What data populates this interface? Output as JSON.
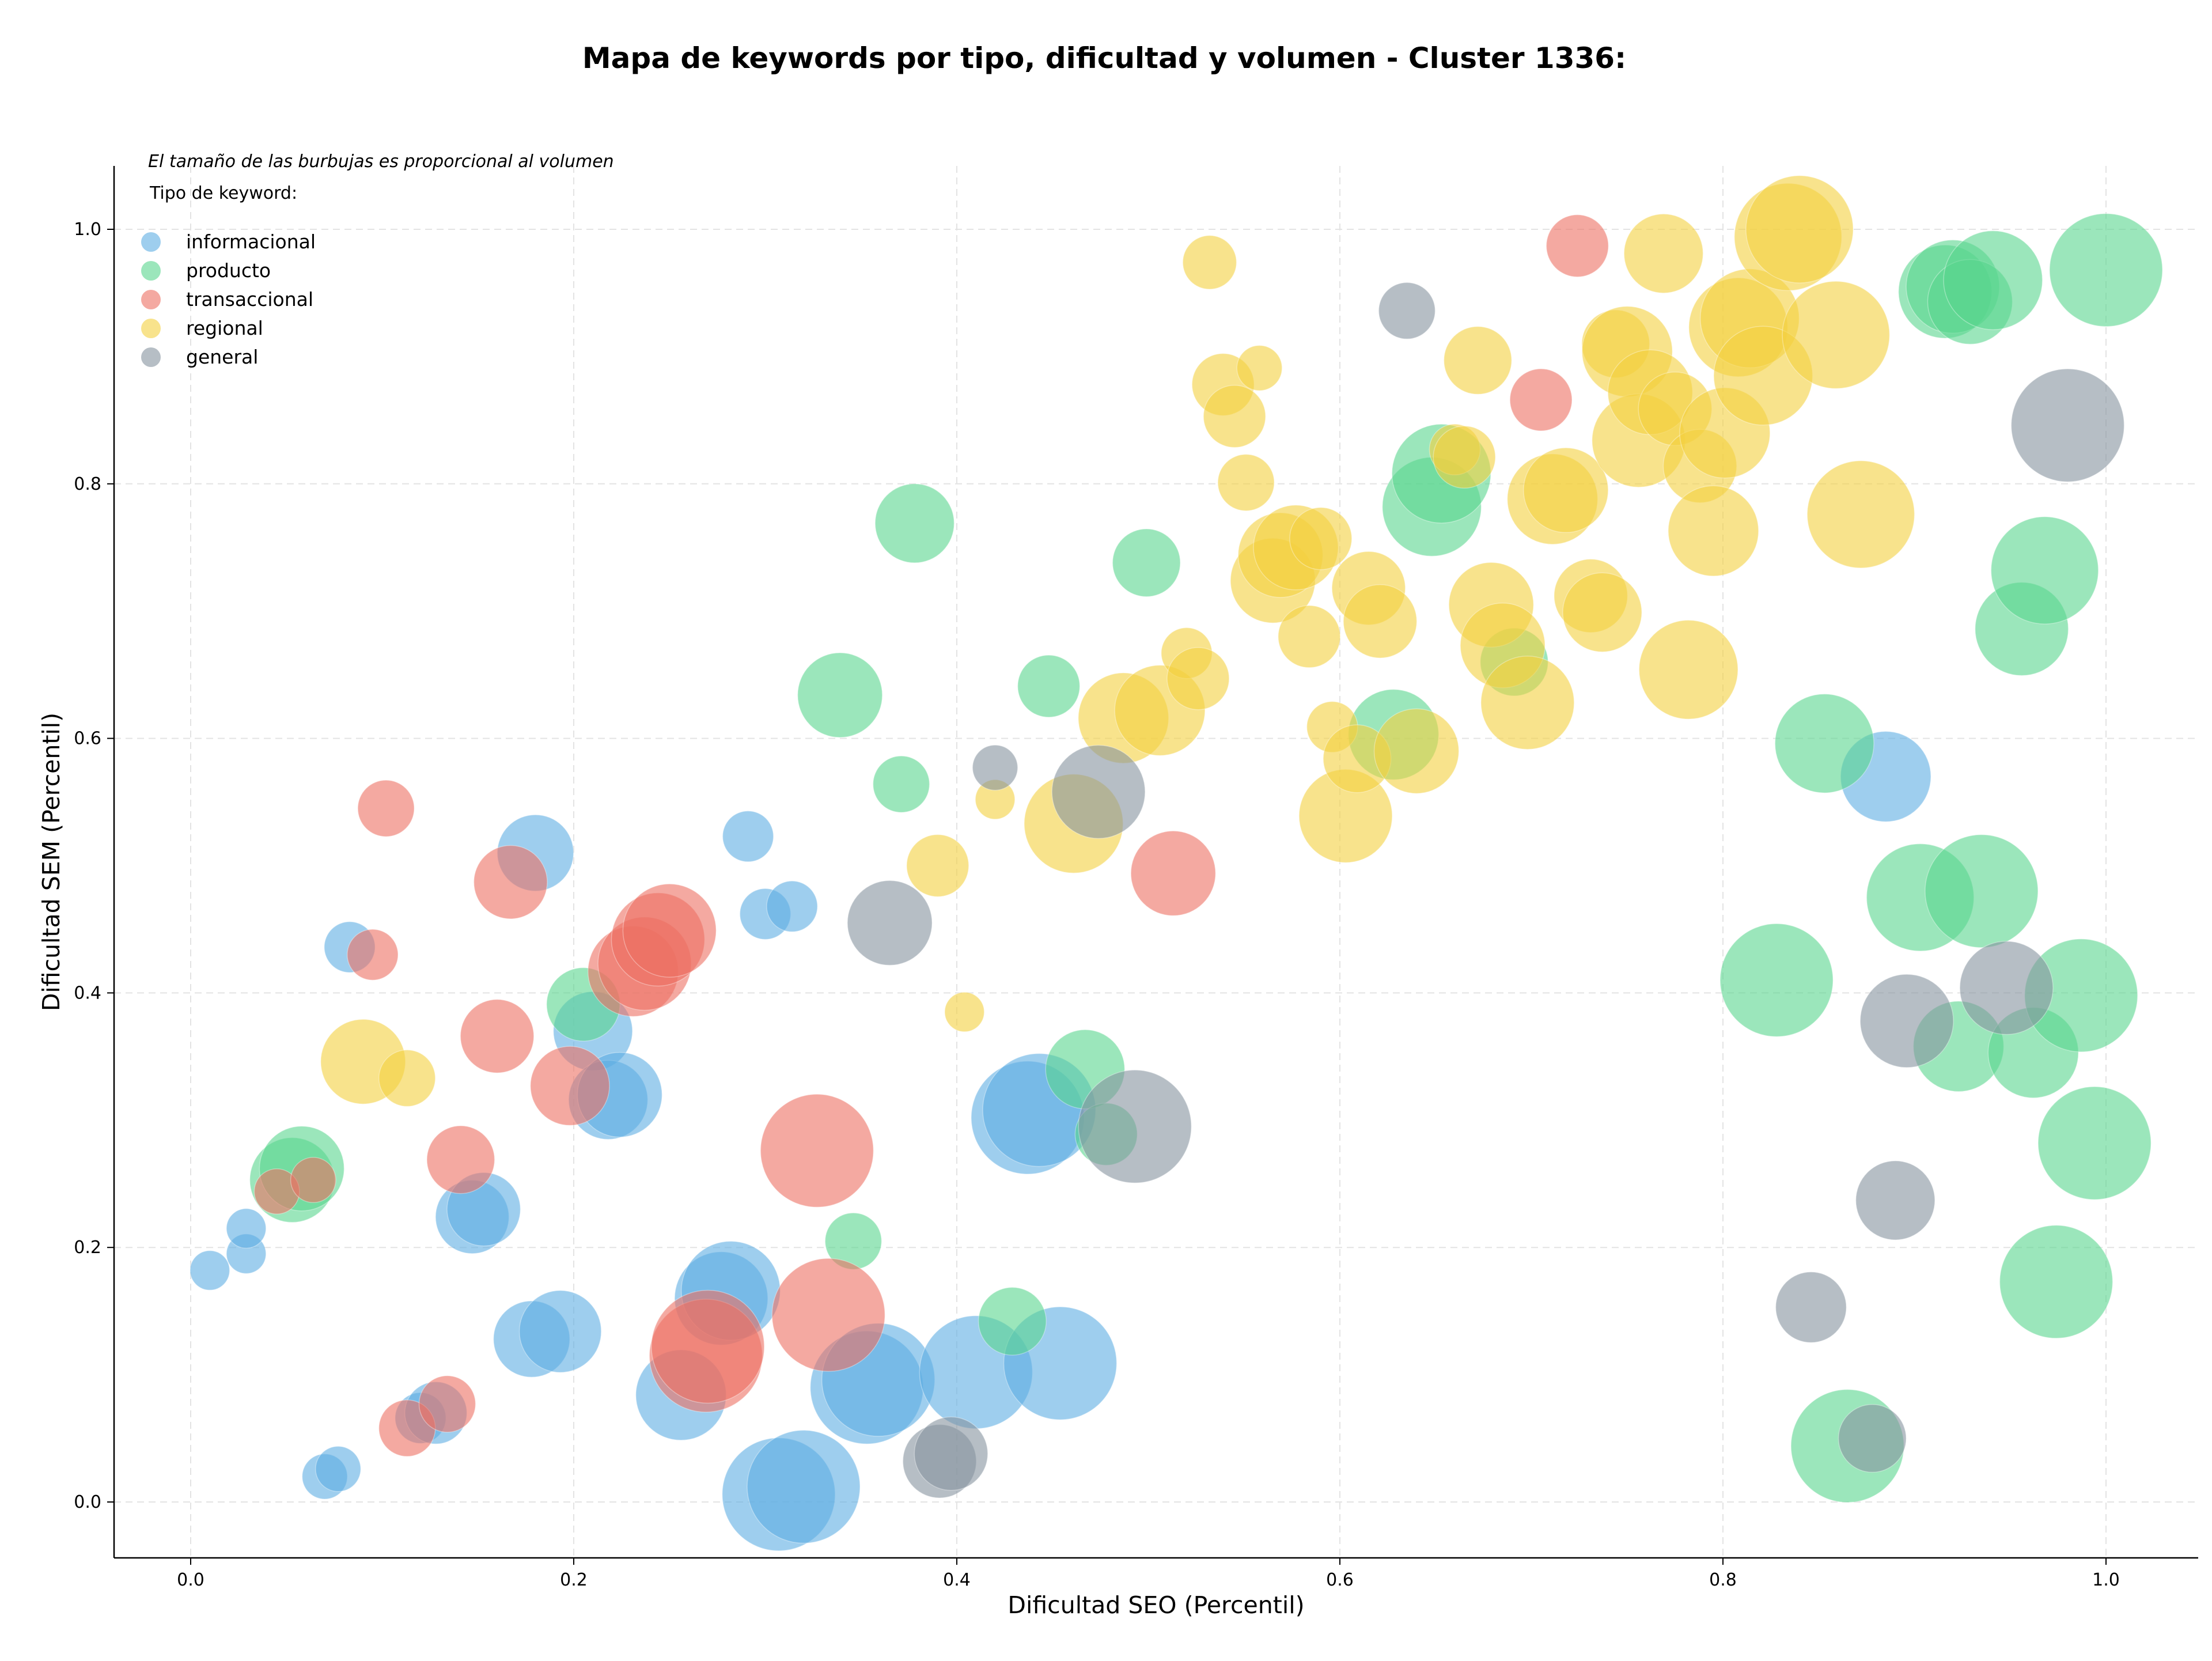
{
  "chart_data": {
    "type": "scatter",
    "title": "Mapa de keywords por tipo, dificultad y volumen - Cluster 1336:",
    "xlabel": "Dificultad SEO (Percentil)",
    "ylabel": "Dificultad SEM (Percentil)",
    "xlim": [
      -0.04,
      1.05
    ],
    "ylim": [
      -0.04,
      1.05
    ],
    "x_ticks": [
      "0.0",
      "0.2",
      "0.4",
      "0.6",
      "0.8",
      "1.0"
    ],
    "y_ticks": [
      "0.0",
      "0.2",
      "0.4",
      "0.6",
      "0.8",
      "1.0"
    ],
    "grid": true,
    "note": "El tamaño de las burbujas es proporcional al volumen",
    "legend": {
      "title": "Tipo de keyword:",
      "placement": "top-left"
    },
    "series": [
      {
        "name": "informacional",
        "color": "#5dade2",
        "points": [
          [
            0.01,
            0.182,
            14
          ],
          [
            0.029,
            0.195,
            14
          ],
          [
            0.029,
            0.215,
            14
          ],
          [
            0.07,
            0.02,
            16
          ],
          [
            0.077,
            0.026,
            16
          ],
          [
            0.083,
            0.436,
            18
          ],
          [
            0.12,
            0.066,
            18
          ],
          [
            0.128,
            0.07,
            22
          ],
          [
            0.147,
            0.224,
            26
          ],
          [
            0.153,
            0.23,
            26
          ],
          [
            0.178,
            0.128,
            27
          ],
          [
            0.18,
            0.51,
            27
          ],
          [
            0.193,
            0.134,
            29
          ],
          [
            0.21,
            0.37,
            28
          ],
          [
            0.218,
            0.316,
            28
          ],
          [
            0.224,
            0.32,
            30
          ],
          [
            0.256,
            0.084,
            32
          ],
          [
            0.277,
            0.16,
            33
          ],
          [
            0.282,
            0.166,
            35
          ],
          [
            0.291,
            0.523,
            18
          ],
          [
            0.3,
            0.462,
            18
          ],
          [
            0.314,
            0.468,
            18
          ],
          [
            0.307,
            0.006,
            40
          ],
          [
            0.32,
            0.012,
            40
          ],
          [
            0.353,
            0.09,
            40
          ],
          [
            0.359,
            0.096,
            40
          ],
          [
            0.41,
            0.102,
            40
          ],
          [
            0.437,
            0.302,
            40
          ],
          [
            0.443,
            0.308,
            40
          ],
          [
            0.454,
            0.109,
            40
          ],
          [
            0.885,
            0.57,
            32
          ]
        ]
      },
      {
        "name": "producto",
        "color": "#58d68d",
        "points": [
          [
            0.053,
            0.253,
            30
          ],
          [
            0.058,
            0.262,
            30
          ],
          [
            0.205,
            0.391,
            26
          ],
          [
            0.339,
            0.634,
            30
          ],
          [
            0.346,
            0.205,
            20
          ],
          [
            0.371,
            0.564,
            20
          ],
          [
            0.378,
            0.769,
            28
          ],
          [
            0.429,
            0.142,
            24
          ],
          [
            0.448,
            0.641,
            22
          ],
          [
            0.467,
            0.34,
            28
          ],
          [
            0.478,
            0.289,
            22
          ],
          [
            0.499,
            0.738,
            24
          ],
          [
            0.628,
            0.603,
            32
          ],
          [
            0.648,
            0.782,
            35
          ],
          [
            0.653,
            0.808,
            35
          ],
          [
            0.691,
            0.66,
            24
          ],
          [
            0.828,
            0.41,
            40
          ],
          [
            0.853,
            0.596,
            35
          ],
          [
            0.865,
            0.044,
            40
          ],
          [
            0.903,
            0.475,
            38
          ],
          [
            0.916,
            0.951,
            33
          ],
          [
            0.92,
            0.955,
            33
          ],
          [
            0.923,
            0.358,
            32
          ],
          [
            0.929,
            0.943,
            30
          ],
          [
            0.935,
            0.48,
            40
          ],
          [
            0.941,
            0.96,
            35
          ],
          [
            0.956,
            0.686,
            33
          ],
          [
            0.962,
            0.353,
            32
          ],
          [
            0.968,
            0.732,
            38
          ],
          [
            0.974,
            0.173,
            40
          ],
          [
            0.987,
            0.398,
            40
          ],
          [
            0.994,
            0.282,
            40
          ],
          [
            1.0,
            0.968,
            40
          ]
        ]
      },
      {
        "name": "transaccional",
        "color": "#ec7063",
        "points": [
          [
            0.045,
            0.244,
            16
          ],
          [
            0.064,
            0.253,
            16
          ],
          [
            0.095,
            0.43,
            18
          ],
          [
            0.102,
            0.545,
            20
          ],
          [
            0.113,
            0.058,
            20
          ],
          [
            0.134,
            0.077,
            20
          ],
          [
            0.141,
            0.269,
            24
          ],
          [
            0.16,
            0.366,
            26
          ],
          [
            0.167,
            0.487,
            26
          ],
          [
            0.198,
            0.327,
            28
          ],
          [
            0.231,
            0.417,
            32
          ],
          [
            0.237,
            0.423,
            33
          ],
          [
            0.244,
            0.442,
            33
          ],
          [
            0.25,
            0.449,
            33
          ],
          [
            0.269,
            0.115,
            40
          ],
          [
            0.27,
            0.122,
            40
          ],
          [
            0.327,
            0.276,
            40
          ],
          [
            0.333,
            0.147,
            40
          ],
          [
            0.513,
            0.494,
            30
          ],
          [
            0.705,
            0.866,
            22
          ],
          [
            0.724,
            0.987,
            22
          ]
        ]
      },
      {
        "name": "regional",
        "color": "#f4d03f",
        "points": [
          [
            0.09,
            0.346,
            30
          ],
          [
            0.113,
            0.333,
            20
          ],
          [
            0.39,
            0.5,
            22
          ],
          [
            0.404,
            0.385,
            14
          ],
          [
            0.42,
            0.552,
            14
          ],
          [
            0.461,
            0.533,
            35
          ],
          [
            0.487,
            0.616,
            32
          ],
          [
            0.506,
            0.622,
            32
          ],
          [
            0.52,
            0.667,
            18
          ],
          [
            0.526,
            0.647,
            22
          ],
          [
            0.532,
            0.974,
            19
          ],
          [
            0.539,
            0.878,
            22
          ],
          [
            0.545,
            0.853,
            22
          ],
          [
            0.551,
            0.801,
            20
          ],
          [
            0.558,
            0.891,
            16
          ],
          [
            0.565,
            0.724,
            30
          ],
          [
            0.569,
            0.744,
            30
          ],
          [
            0.577,
            0.75,
            30
          ],
          [
            0.584,
            0.68,
            22
          ],
          [
            0.59,
            0.757,
            22
          ],
          [
            0.596,
            0.609,
            18
          ],
          [
            0.603,
            0.539,
            33
          ],
          [
            0.609,
            0.584,
            24
          ],
          [
            0.615,
            0.718,
            26
          ],
          [
            0.621,
            0.692,
            26
          ],
          [
            0.64,
            0.59,
            30
          ],
          [
            0.66,
            0.827,
            18
          ],
          [
            0.665,
            0.821,
            22
          ],
          [
            0.672,
            0.897,
            24
          ],
          [
            0.679,
            0.705,
            30
          ],
          [
            0.685,
            0.673,
            30
          ],
          [
            0.698,
            0.628,
            33
          ],
          [
            0.711,
            0.788,
            32
          ],
          [
            0.718,
            0.795,
            30
          ],
          [
            0.731,
            0.712,
            26
          ],
          [
            0.737,
            0.699,
            28
          ],
          [
            0.744,
            0.91,
            24
          ],
          [
            0.75,
            0.904,
            32
          ],
          [
            0.756,
            0.834,
            33
          ],
          [
            0.762,
            0.872,
            30
          ],
          [
            0.769,
            0.981,
            28
          ],
          [
            0.775,
            0.859,
            26
          ],
          [
            0.782,
            0.654,
            35
          ],
          [
            0.788,
            0.814,
            26
          ],
          [
            0.795,
            0.763,
            32
          ],
          [
            0.801,
            0.84,
            32
          ],
          [
            0.808,
            0.923,
            35
          ],
          [
            0.814,
            0.93,
            35
          ],
          [
            0.821,
            0.885,
            35
          ],
          [
            0.834,
            0.994,
            38
          ],
          [
            0.84,
            1.0,
            38
          ],
          [
            0.859,
            0.917,
            38
          ],
          [
            0.872,
            0.776,
            38
          ]
        ]
      },
      {
        "name": "general",
        "color": "#85929e",
        "points": [
          [
            0.365,
            0.455,
            30
          ],
          [
            0.391,
            0.032,
            26
          ],
          [
            0.397,
            0.038,
            26
          ],
          [
            0.42,
            0.577,
            16
          ],
          [
            0.474,
            0.558,
            33
          ],
          [
            0.493,
            0.295,
            40
          ],
          [
            0.635,
            0.936,
            20
          ],
          [
            0.846,
            0.153,
            25
          ],
          [
            0.878,
            0.05,
            24
          ],
          [
            0.89,
            0.237,
            28
          ],
          [
            0.896,
            0.378,
            33
          ],
          [
            0.948,
            0.404,
            33
          ],
          [
            0.98,
            0.846,
            40
          ]
        ]
      }
    ]
  }
}
